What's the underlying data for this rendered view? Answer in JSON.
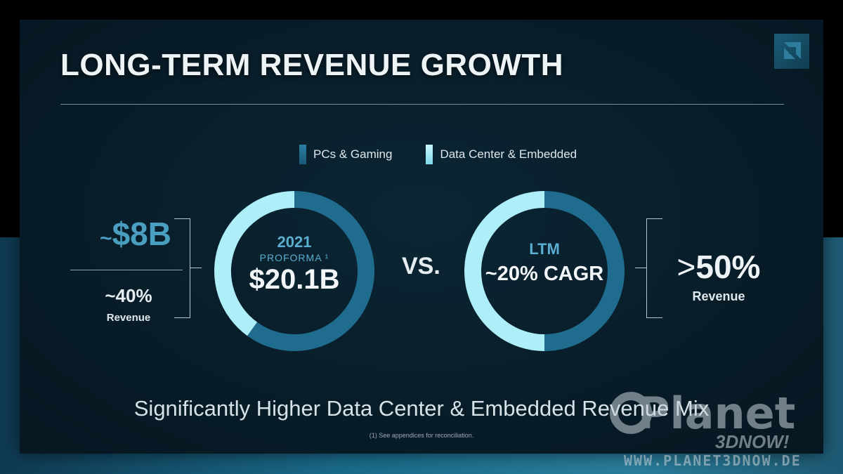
{
  "title": "LONG-TERM REVENUE GROWTH",
  "legend": {
    "pc_label": "PCs & Gaming",
    "dc_label": "Data Center & Embedded"
  },
  "colors": {
    "pc": "#1f6c8f",
    "dc": "#aeeef9",
    "accent": "#5aaed0"
  },
  "left": {
    "tilde": "~",
    "value": "$8B",
    "pct": "~40%",
    "pct_label": "Revenue"
  },
  "vs": "VS.",
  "right": {
    "gt": ">",
    "value": "50%",
    "pct_label": "Revenue"
  },
  "subtitle": "Significantly Higher Data Center & Embedded Revenue Mix",
  "footnote": "(1) See appendices for reconciliation.",
  "watermark": {
    "planet": "Planet",
    "brand": "3DNOW!",
    "url": "WWW.PLANET3DNOW.DE"
  },
  "chart_data": [
    {
      "type": "pie",
      "center_year": "2021",
      "center_label": "PROFORMA ¹",
      "center_value": "$20.1B",
      "labels": [
        "PCs & Gaming",
        "Data Center & Embedded"
      ],
      "values": [
        60,
        40
      ]
    },
    {
      "type": "pie",
      "center_label": "LTM",
      "center_value": "~20% CAGR",
      "labels": [
        "PCs & Gaming",
        "Data Center & Embedded"
      ],
      "values": [
        50,
        50
      ]
    }
  ]
}
